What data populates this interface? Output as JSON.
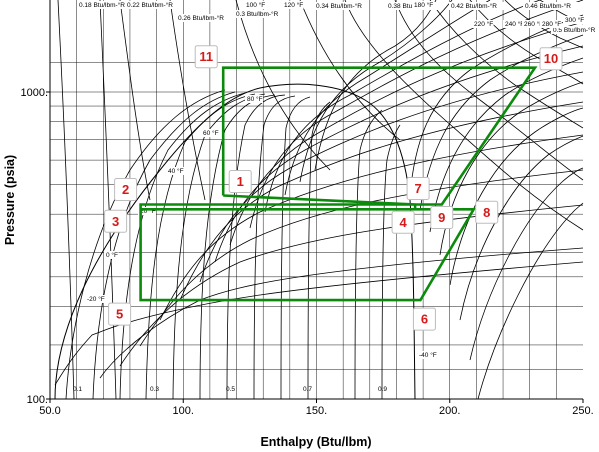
{
  "chart_data": {
    "type": "line",
    "title": "",
    "xlabel": "Enthalpy (Btu/lbm)",
    "ylabel": "Pressure (psia)",
    "xlim": [
      50,
      250
    ],
    "ylim": [
      100,
      1500
    ],
    "y_scale": "log",
    "grid": true,
    "x_ticks": [
      "50.0",
      "100.",
      "150.",
      "200.",
      "250."
    ],
    "y_ticks": [
      "100.",
      "1000."
    ],
    "entropy_labels": [
      "0.18 Btu/lbm-°R",
      "0.22 Btu/lbm-°R",
      "0.26 Btu/lbm-°R",
      "0.3 Btu/lbm-°R",
      "0.34 Btu/lbm-°R",
      "0.38 Btu/lbm-°R",
      "0.42 Btu/lbm-°R",
      "0.46 Btu/lbm-°R",
      "0.5 Btu/lbm-°R"
    ],
    "isotherm_labels": [
      "100 °F",
      "120 °F",
      "180 °F",
      "220 °F",
      "240 °F",
      "260 °F",
      "280 °F",
      "300 °F",
      "80 °F",
      "60 °F",
      "40 °F",
      "20 °F",
      "0 °F",
      "-20 °F",
      "-40 °F"
    ],
    "quality_labels": [
      "0.1",
      "0.3",
      "0.5",
      "0.7",
      "0.9"
    ],
    "series": [
      {
        "name": "",
        "points": [
          {
            "label": "11",
            "h": 115,
            "p": 1200
          },
          {
            "label": "10",
            "h": 232,
            "p": 1200
          },
          {
            "label": "9",
            "h": 197,
            "p": 430
          },
          {
            "label": "7",
            "h": 187,
            "p": 430
          },
          {
            "label": "4",
            "h": 187,
            "p": 415
          },
          {
            "label": "8",
            "h": 209,
            "p": 415
          },
          {
            "label": "6",
            "h": 189,
            "p": 210
          },
          {
            "label": "5",
            "h": 84,
            "p": 210
          },
          {
            "label": "3",
            "h": 84,
            "p": 415
          },
          {
            "label": "2",
            "h": 84,
            "p": 430
          },
          {
            "label": "1",
            "h": 115,
            "p": 460
          }
        ]
      }
    ]
  }
}
